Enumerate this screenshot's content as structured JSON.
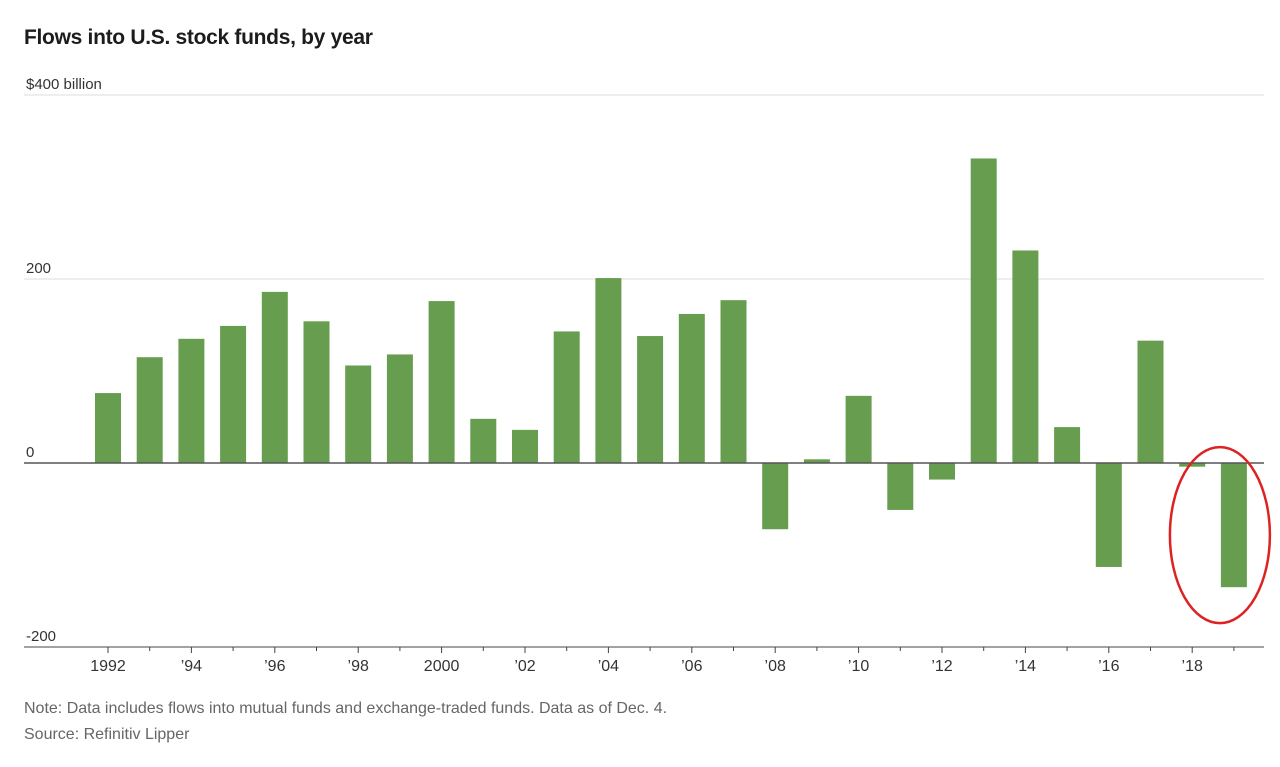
{
  "title": "Flows into U.S. stock funds, by year",
  "note": "Note: Data includes flows into mutual funds and exchange-traded funds. Data as of Dec. 4.",
  "source": "Source: Refinitiv Lipper",
  "colors": {
    "bar": "#679d4e",
    "grid": "#dddddd",
    "zero": "#555555",
    "highlight_circle": "#dd2222"
  },
  "chart_data": {
    "type": "bar",
    "x": [
      1992,
      1993,
      1994,
      1995,
      1996,
      1997,
      1998,
      1999,
      2000,
      2001,
      2002,
      2003,
      2004,
      2005,
      2006,
      2007,
      2008,
      2009,
      2010,
      2011,
      2012,
      2013,
      2014,
      2015,
      2016,
      2017,
      2018,
      2019
    ],
    "values": [
      76,
      115,
      135,
      149,
      186,
      154,
      106,
      118,
      176,
      48,
      36,
      143,
      201,
      138,
      162,
      177,
      -72,
      4,
      73,
      -51,
      -18,
      331,
      231,
      39,
      -113,
      133,
      -4,
      -135
    ],
    "ylim": [
      -200,
      400
    ],
    "yticks": [
      {
        "value": 400,
        "label": "$400 billion"
      },
      {
        "value": 200,
        "label": "200"
      },
      {
        "value": 0,
        "label": "0"
      },
      {
        "value": -200,
        "label": "-200"
      }
    ],
    "xticks": [
      {
        "x": 1992,
        "label": "1992"
      },
      {
        "x": 1994,
        "label": "’94"
      },
      {
        "x": 1996,
        "label": "’96"
      },
      {
        "x": 1998,
        "label": "’98"
      },
      {
        "x": 2000,
        "label": "2000"
      },
      {
        "x": 2002,
        "label": "’02"
      },
      {
        "x": 2004,
        "label": "’04"
      },
      {
        "x": 2006,
        "label": "’06"
      },
      {
        "x": 2008,
        "label": "’08"
      },
      {
        "x": 2010,
        "label": "’10"
      },
      {
        "x": 2012,
        "label": "’12"
      },
      {
        "x": 2014,
        "label": "’14"
      },
      {
        "x": 2016,
        "label": "’16"
      },
      {
        "x": 2018,
        "label": "’18"
      }
    ],
    "highlighted_x": 2019,
    "grid": true,
    "legend": false
  }
}
